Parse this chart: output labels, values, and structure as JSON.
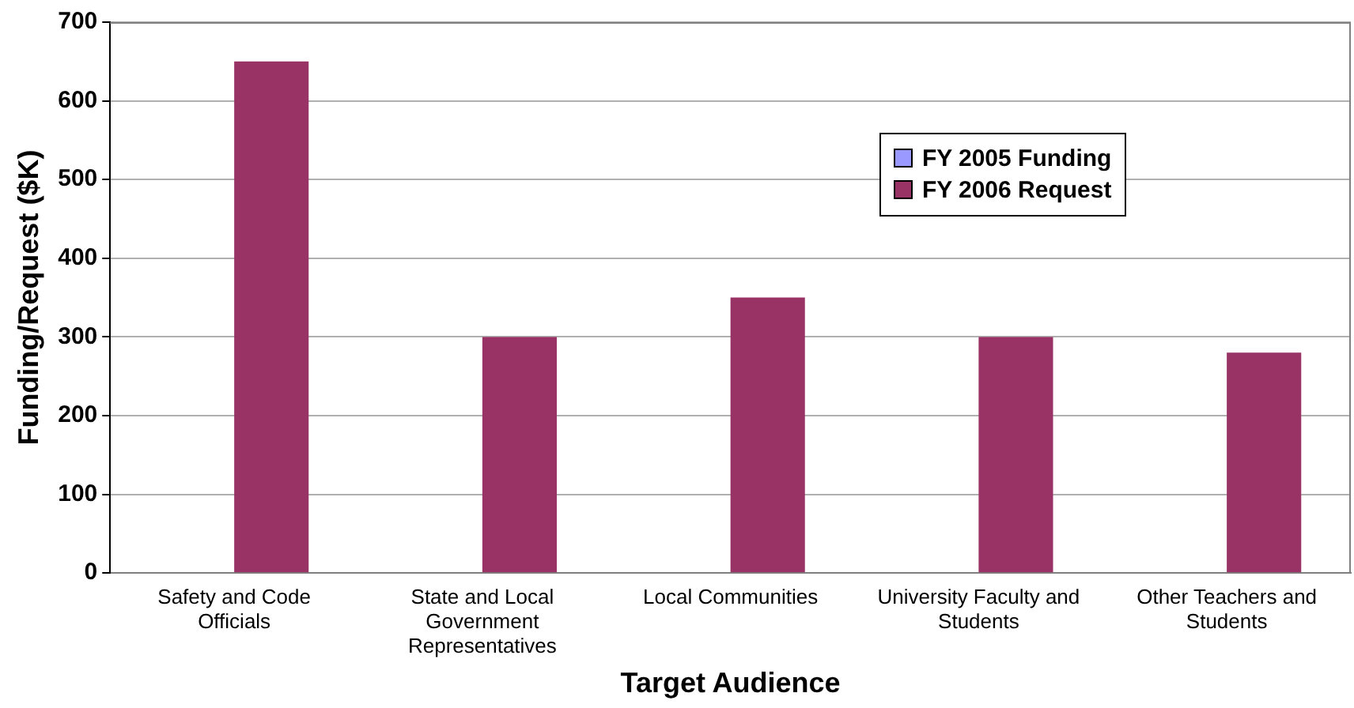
{
  "chart_data": {
    "type": "bar",
    "xlabel": "Target Audience",
    "ylabel": "Funding/Request ($K)",
    "categories": [
      "Safety and Code Officials",
      "State and Local Government Representatives",
      "Local Communities",
      "University Faculty and Students",
      "Other Teachers and Students"
    ],
    "series": [
      {
        "name": "FY 2005 Funding",
        "color": "#9999ff",
        "values": [
          0,
          0,
          0,
          0,
          0
        ]
      },
      {
        "name": "FY 2006 Request",
        "color": "#993366",
        "values": [
          650,
          300,
          350,
          300,
          280
        ]
      }
    ],
    "ylim": [
      0,
      700
    ],
    "yticks": [
      0,
      100,
      200,
      300,
      400,
      500,
      600,
      700
    ],
    "grid": "y",
    "legend": "top right"
  }
}
